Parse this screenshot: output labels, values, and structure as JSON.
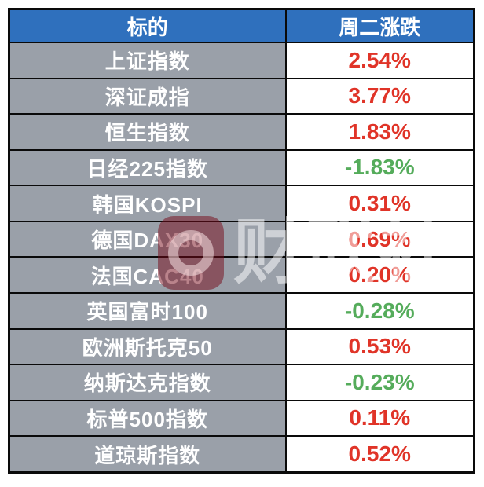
{
  "table": {
    "headers": [
      "标的",
      "周二涨跌"
    ],
    "rows": [
      {
        "label": "上证指数",
        "change": "2.54%",
        "direction": "up"
      },
      {
        "label": "深证成指",
        "change": "3.77%",
        "direction": "up"
      },
      {
        "label": "恒生指数",
        "change": "1.83%",
        "direction": "up"
      },
      {
        "label": "日经225指数",
        "change": "-1.83%",
        "direction": "down"
      },
      {
        "label": "韩国KOSPI",
        "change": "0.31%",
        "direction": "up"
      },
      {
        "label": "德国DAX30",
        "change": "0.69%",
        "direction": "up"
      },
      {
        "label": "法国CAC40",
        "change": "0.20%",
        "direction": "up"
      },
      {
        "label": "英国富时100",
        "change": "-0.28%",
        "direction": "down"
      },
      {
        "label": "欧洲斯托克50",
        "change": "0.53%",
        "direction": "up"
      },
      {
        "label": "纳斯达克指数",
        "change": "-0.23%",
        "direction": "down"
      },
      {
        "label": "标普500指数",
        "change": "0.11%",
        "direction": "up"
      },
      {
        "label": "道琼斯指数",
        "change": "0.52%",
        "direction": "up"
      }
    ]
  },
  "watermark": {
    "text": "财联社",
    "logo": "cailianshe-logo"
  },
  "colors": {
    "up": "#e03428",
    "down": "#55ac5b",
    "header_bg": "#2f70bd",
    "header_text": "#ffffff",
    "label_bg": "#9aa0a9",
    "border": "#0a0a0a"
  },
  "chart_data": {
    "type": "table",
    "title": "",
    "columns": [
      "标的",
      "周二涨跌"
    ],
    "categories": [
      "上证指数",
      "深证成指",
      "恒生指数",
      "日经225指数",
      "韩国KOSPI",
      "德国DAX30",
      "法国CAC40",
      "英国富时100",
      "欧洲斯托克50",
      "纳斯达克指数",
      "标普500指数",
      "道琼斯指数"
    ],
    "values_percent": [
      2.54,
      3.77,
      1.83,
      -1.83,
      0.31,
      0.69,
      0.2,
      -0.28,
      0.53,
      -0.23,
      0.11,
      0.52
    ],
    "positive_color": "#e03428",
    "negative_color": "#55ac5b",
    "legend_position": "none",
    "grid": true
  }
}
